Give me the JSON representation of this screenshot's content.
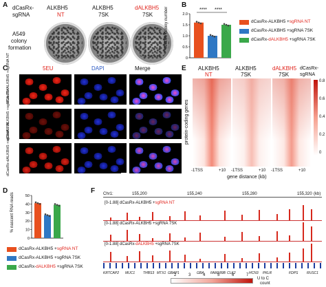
{
  "panels": {
    "A": "A",
    "B": "B",
    "C": "C",
    "D": "D",
    "E": "E",
    "F": "F"
  },
  "panelA": {
    "row_label_1": "dCasRx-",
    "row_label_2": "sgRNA",
    "col1_line1": "ALKBH5",
    "col1_line2": "NT",
    "col2_line1": "ALKBH5",
    "col2_line2": "7SK",
    "col3_line1": "dALKBH5",
    "col3_line2": "7SK",
    "side_label_1": "A549",
    "side_label_2": "colony",
    "side_label_3": "formation"
  },
  "panelB": {
    "ylabel": "relative colony number",
    "sig1": "****",
    "sig2": "****",
    "legend": [
      {
        "text_a": "dCasRx-ALKBH5 +",
        "text_b": "sgRNA NT",
        "color": "#e8501e"
      },
      {
        "text_a": "dCasRx-ALKBH5 +sgRNA 7SK",
        "text_b": "",
        "color": "#2f78c4"
      },
      {
        "text_a": "dCasRx-",
        "text_b": "dALKBH5",
        "text_c": " +sgRNA 7SK",
        "color": "#3aa84a"
      }
    ],
    "chart_data": {
      "type": "bar",
      "categories": [
        "dCasRx-ALKBH5 +sgRNA NT",
        "dCasRx-ALKBH5 +sgRNA 7SK",
        "dCasRx-dALKBH5 +sgRNA 7SK"
      ],
      "values": [
        1.6,
        1.0,
        1.5
      ],
      "ylim": [
        0,
        2.0
      ],
      "yticks": [
        "0",
        "0.5",
        "1.0",
        "1.5",
        "2.0"
      ],
      "colors": [
        "#e8501e",
        "#2f78c4",
        "#3aa84a"
      ]
    }
  },
  "panelC": {
    "col1": "5EU",
    "col2": "DAPI",
    "col3": "Merge",
    "row1": "dCasRx-ALKBH5 +sgRNA NT",
    "row2": "dCasRx-ALKBH5 +sgRNA 7SK",
    "row3": "dCasRx-dALKBH5 +sgRNA 7SK"
  },
  "panelD": {
    "ylabel": "% nascent RNA reads",
    "chart_data": {
      "type": "bar",
      "categories": [
        "dCasRx-ALKBH5 +sgRNA NT",
        "dCasRx-ALKBH5 +sgRNA 7SK",
        "dCasRx-dALKBH5 +sgRNA 7SK"
      ],
      "values": [
        41,
        27,
        39
      ],
      "ylim": [
        0,
        50
      ],
      "yticks": [
        "0",
        "10",
        "20",
        "30",
        "40",
        "50"
      ],
      "colors": [
        "#e8501e",
        "#2f78c4",
        "#3aa84a"
      ]
    },
    "legend": [
      {
        "text_a": "dCasRx-ALKBH5 +",
        "text_b": "sgRNA NT",
        "color": "#e8501e"
      },
      {
        "text_a": "dCasRx-ALKBH5 +sgRNA 7SK",
        "text_b": "",
        "color": "#2f78c4"
      },
      {
        "text_a": "dCasRx-",
        "text_b": "dALKBH5",
        "text_c": " +sgRNA 7SK",
        "color": "#3aa84a"
      }
    ]
  },
  "panelE": {
    "col1_a": "ALKBH5",
    "col1_b": "NT",
    "col2_a": "ALKBH5",
    "col2_b": "7SK",
    "col3_a": "dALKBH5",
    "col3_b": "7SK",
    "key_a": "dCasRx-",
    "key_b": "sgRNA",
    "ylabel": "protein-coding genes",
    "tss": "-1TSS",
    "plus": "+10",
    "xlabel": "gene distance (kb)",
    "scale": [
      "0.8",
      "0.6",
      "0.4",
      "0.2",
      "0"
    ]
  },
  "panelF": {
    "chr": "Chr1:",
    "coords": [
      "155,200",
      "155,240",
      "155,280",
      "155,320"
    ],
    "unit": "(kb)",
    "tracks": [
      {
        "range": "[0-1.88]",
        "a": "dCasRx-ALKBH5 +",
        "b": "sgRNA NT",
        "c": ""
      },
      {
        "range": "[0-1.88]",
        "a": "dCasRx-ALKBH5 +sgRNA 7SK",
        "b": "",
        "c": ""
      },
      {
        "range": "[0-1.88]",
        "a": "dCasRx-",
        "b": "dALKBH5",
        "c": " +sgRNA 7SK"
      }
    ],
    "genes": [
      "KRTCAP2",
      "MUC1",
      "THBS3",
      "MTX1",
      "GBAP1",
      "GBA",
      "FAM189B",
      "CLK2",
      "HCN3",
      "PKLR",
      "FDPS",
      "RUSC1"
    ],
    "scale_ticks": [
      "2",
      "3",
      "4",
      "5",
      "6",
      "7"
    ],
    "scale_label_a": "U to C",
    "scale_label_b": "count"
  }
}
